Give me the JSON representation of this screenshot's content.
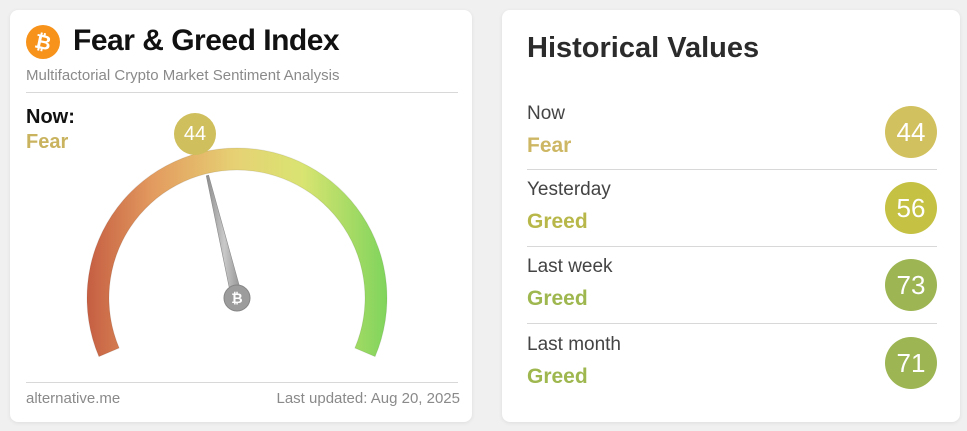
{
  "left": {
    "logo_icon": "bitcoin-icon",
    "title": "Fear & Greed Index",
    "subtitle": "Multifactorial Crypto Market Sentiment Analysis",
    "now_label": "Now:",
    "now_classification": "Fear",
    "gauge": {
      "value": 44,
      "value_text": "44",
      "min": 0,
      "max": 100,
      "needle_icon": "bitcoin-icon"
    },
    "footer_source": "alternative.me",
    "footer_updated": "Last updated: Aug 20, 2025"
  },
  "right": {
    "title": "Historical Values",
    "rows": [
      {
        "label": "Now",
        "classification": "Fear",
        "value": "44",
        "class_color": "#cdb764",
        "badge_color": "#d2c15f"
      },
      {
        "label": "Yesterday",
        "classification": "Greed",
        "value": "56",
        "class_color": "#b8b84a",
        "badge_color": "#c4c143"
      },
      {
        "label": "Last week",
        "classification": "Greed",
        "value": "73",
        "class_color": "#9fb74f",
        "badge_color": "#9db553"
      },
      {
        "label": "Last month",
        "classification": "Greed",
        "value": "71",
        "class_color": "#9fb74f",
        "badge_color": "#9db553"
      }
    ]
  },
  "colors": {
    "brand_orange": "#f7931a",
    "fear_red": "#c7603d",
    "neutral_yellow": "#e3dc71",
    "greed_green": "#7fd45c",
    "needle_gray": "#9a9a9a"
  }
}
